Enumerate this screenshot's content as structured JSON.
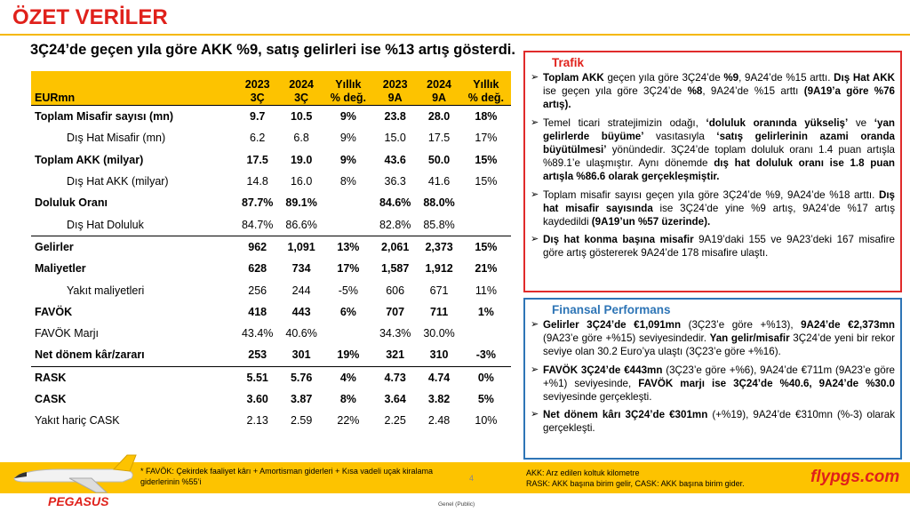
{
  "header": {
    "title": "ÖZET VERİLER",
    "subtitle": "3Ç24’de geçen yıla göre AKK %9, satış gelirleri ise %13 artış gösterdi."
  },
  "table": {
    "corner": "EURmn",
    "columns": [
      [
        "2023",
        "3Ç"
      ],
      [
        "2024",
        "3Ç"
      ],
      [
        "Yıllık",
        "% değ."
      ],
      [
        "2023",
        "9A"
      ],
      [
        "2024",
        "9A"
      ],
      [
        "Yıllık",
        "% değ."
      ]
    ],
    "rows": [
      {
        "label": "Toplam Misafir sayısı (mn)",
        "bold": true,
        "indent": false,
        "cells": [
          "9.7",
          "10.5",
          "9%",
          "23.8",
          "28.0",
          "18%"
        ]
      },
      {
        "label": "Dış Hat Misafir (mn)",
        "bold": false,
        "indent": true,
        "cells": [
          "6.2",
          "6.8",
          "9%",
          "15.0",
          "17.5",
          "17%"
        ]
      },
      {
        "label": "Toplam AKK (milyar)",
        "bold": true,
        "indent": false,
        "cells": [
          "17.5",
          "19.0",
          "9%",
          "43.6",
          "50.0",
          "15%"
        ]
      },
      {
        "label": "Dış Hat AKK (milyar)",
        "bold": false,
        "indent": true,
        "cells": [
          "14.8",
          "16.0",
          "8%",
          "36.3",
          "41.6",
          "15%"
        ]
      },
      {
        "label": "Doluluk Oranı",
        "bold": true,
        "indent": false,
        "cells": [
          "87.7%",
          "89.1%",
          null,
          "84.6%",
          "88.0%",
          null
        ]
      },
      {
        "label": "Dış Hat Doluluk",
        "bold": false,
        "indent": true,
        "cells": [
          "84.7%",
          "86.6%",
          null,
          "82.8%",
          "85.8%",
          null
        ]
      },
      {
        "label": "Gelirler",
        "bold": true,
        "indent": false,
        "cells": [
          "962",
          "1,091",
          "13%",
          "2,061",
          "2,373",
          "15%"
        ]
      },
      {
        "label": "Maliyetler",
        "bold": true,
        "indent": false,
        "cells": [
          "628",
          "734",
          "17%",
          "1,587",
          "1,912",
          "21%"
        ]
      },
      {
        "label": "Yakıt maliyetleri",
        "bold": false,
        "indent": true,
        "cells": [
          "256",
          "244",
          "-5%",
          "606",
          "671",
          "11%"
        ]
      },
      {
        "label": "FAVÖK",
        "bold": true,
        "indent": false,
        "cells": [
          "418",
          "443",
          "6%",
          "707",
          "711",
          "1%"
        ]
      },
      {
        "label": "FAVÖK Marjı",
        "bold": false,
        "indent": false,
        "cells": [
          "43.4%",
          "40.6%",
          null,
          "34.3%",
          "30.0%",
          null
        ]
      },
      {
        "label": "Net dönem kâr/zararı",
        "bold": true,
        "indent": false,
        "cells": [
          "253",
          "301",
          "19%",
          "321",
          "310",
          "-3%"
        ]
      },
      {
        "label": "RASK",
        "bold": true,
        "indent": false,
        "cells": [
          "5.51",
          "5.76",
          "4%",
          "4.73",
          "4.74",
          "0%"
        ]
      },
      {
        "label": "CASK",
        "bold": true,
        "indent": false,
        "cells": [
          "3.60",
          "3.87",
          "8%",
          "3.64",
          "3.82",
          "5%"
        ]
      },
      {
        "label": "Yakıt hariç CASK",
        "bold": false,
        "indent": false,
        "cells": [
          "2.13",
          "2.59",
          "22%",
          "2.25",
          "2.48",
          "10%"
        ]
      }
    ]
  },
  "panels": [
    {
      "title": "Trafik",
      "bullets": [
        [
          {
            "text": "Toplam AKK",
            "bold": true
          },
          {
            "text": " geçen yıla göre 3Ç24’de ",
            "bold": false
          },
          {
            "text": "%9",
            "bold": true
          },
          {
            "text": ", 9A24’de %15 arttı. ",
            "bold": false
          },
          {
            "text": "Dış Hat AKK",
            "bold": true
          },
          {
            "text": " ise geçen yıla göre 3Ç24’de ",
            "bold": false
          },
          {
            "text": "%8",
            "bold": true
          },
          {
            "text": ", 9A24’de %15 arttı ",
            "bold": false
          },
          {
            "text": "(9A19’a göre %76 artış).",
            "bold": true
          }
        ],
        [
          {
            "text": "Temel ticari stratejimizin odağı, ",
            "bold": false
          },
          {
            "text": "‘doluluk oranında yükseliş’",
            "bold": true
          },
          {
            "text": " ve ",
            "bold": false
          },
          {
            "text": "‘yan gelirlerde büyüme’",
            "bold": true
          },
          {
            "text": " vasıtasıyla ",
            "bold": false
          },
          {
            "text": "‘satış gelirlerinin azami oranda büyütülmesi’",
            "bold": true
          },
          {
            "text": " yönündedir. 3Ç24’de toplam doluluk oranı 1.4 puan artışla %89.1’e ulaşmıştır. Aynı dönemde ",
            "bold": false
          },
          {
            "text": "dış hat doluluk oranı ise 1.8 puan artışla %86.6 olarak gerçekleşmiştir.",
            "bold": true
          }
        ],
        [
          {
            "text": "Toplam misafir sayısı geçen yıla göre 3Ç24’de %9, 9A24’de %18 arttı. ",
            "bold": false
          },
          {
            "text": "Dış hat misafir sayısında",
            "bold": true
          },
          {
            "text": " ise 3Ç24’de yine %9 artış, 9A24’de %17 artış kaydedildi ",
            "bold": false
          },
          {
            "text": "(9A19’un %57 üzerinde).",
            "bold": true
          }
        ],
        [
          {
            "text": "Dış hat konma başına misafir",
            "bold": true
          },
          {
            "text": " 9A19’daki 155 ve 9A23’deki 167 misafire göre artış göstererek 9A24’de 178 misafire ulaştı.",
            "bold": false
          }
        ]
      ]
    },
    {
      "title": "Finansal Performans",
      "bullets": [
        [
          {
            "text": "Gelirler 3Ç24’de €1,091mn",
            "bold": true
          },
          {
            "text": " (3Ç23’e göre +%13), ",
            "bold": false
          },
          {
            "text": "9A24’de €2,373mn",
            "bold": true
          },
          {
            "text": " (9A23’e göre +%15) seviyesindedir. ",
            "bold": false
          },
          {
            "text": "Yan gelir/misafir",
            "bold": true
          },
          {
            "text": " 3Ç24’de yeni bir rekor seviye olan 30.2 Euro’ya ulaştı (3Ç23’e göre +%16).",
            "bold": false
          }
        ],
        [
          {
            "text": "FAVÖK 3Ç24’de €443mn",
            "bold": true
          },
          {
            "text": " (3Ç23’e göre +%6), 9A24’de €711m (9A23’e göre +%1) seviyesinde, ",
            "bold": false
          },
          {
            "text": "FAVÖK marjı ise 3Ç24’de %40.6, 9A24’de %30.0",
            "bold": true
          },
          {
            "text": " seviyesinde gerçekleşti.",
            "bold": false
          }
        ],
        [
          {
            "text": "Net dönem kârı 3Ç24’de €301mn",
            "bold": true
          },
          {
            "text": " (+%19), 9A24’de €310mn (%-3) olarak gerçekleşti.",
            "bold": false
          }
        ]
      ]
    }
  ],
  "footer": {
    "footnote": "* FAVÖK: Çekirdek faaliyet kârı + Amortisman giderleri + Kısa vadeli uçak kiralama giderlerinin %55’i",
    "page": "4",
    "abbreviations": [
      "AKK: Arz edilen koltuk kilometre",
      "RASK: AKK başına birim gelir, CASK: AKK başına birim gider."
    ],
    "brand": "flypgs.com",
    "logo": "PEGASUS",
    "classification": "Genel (Public)"
  }
}
